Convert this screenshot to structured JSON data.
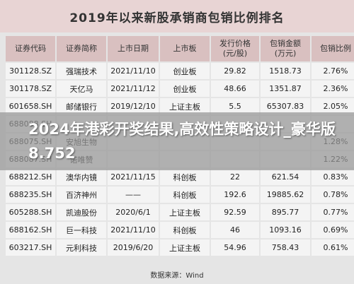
{
  "chart_data": {
    "type": "table",
    "title": "2019年以来新股承销商包销比例排名",
    "columns": [
      "证券代码",
      "证券简称",
      "上市日期",
      "上市板",
      "发行价格\n(元/股)",
      "包销金额\n(万元)",
      "包销比例"
    ],
    "rows": [
      [
        "301128.SZ",
        "强瑞技术",
        "2021/11/10",
        "创业板",
        "29.82",
        "1518.73",
        "2.76%"
      ],
      [
        "301178.SZ",
        "天亿马",
        "2021/11/12",
        "创业板",
        "48.66",
        "1351.87",
        "2.36%"
      ],
      [
        "601658.SH",
        "邮储银行",
        "2019/12/10",
        "上证主板",
        "5.5",
        "65307.83",
        "2.05%"
      ],
      [
        "688088.SH",
        "",
        "",
        "",
        "",
        "",
        ""
      ],
      [
        "688075.SH",
        "安旭生物",
        "",
        "",
        "",
        "",
        "1.28%"
      ],
      [
        "688087.SH",
        "诺唯赞",
        "",
        "",
        "",
        "",
        "1.22%"
      ],
      [
        "688212.SH",
        "澳华内镜",
        "2021/11/15",
        "科创板",
        "22",
        "621.54",
        "0.83%"
      ],
      [
        "688235.SH",
        "百济神州",
        "——",
        "科创板",
        "192.6",
        "19885.62",
        "0.78%"
      ],
      [
        "605288.SH",
        "凯迪股份",
        "2020/6/1",
        "上证主板",
        "92.59",
        "895.77",
        "0.77%"
      ],
      [
        "688162.SH",
        "巨一科技",
        "2021/11/10",
        "科创板",
        "46",
        "1093.16",
        "0.69%"
      ],
      [
        "603217.SH",
        "元利科技",
        "2019/6/20",
        "上证主板",
        "54.96",
        "758.43",
        "0.61%"
      ]
    ],
    "values": [
      2.76,
      2.36,
      2.05,
      null,
      1.28,
      1.22,
      0.83,
      0.78,
      0.77,
      0.69,
      0.61
    ],
    "source": "数据来源：Wind"
  },
  "overlay": {
    "text": "2024年港彩开奖结果,高效性策略设计_豪华版8.752"
  }
}
